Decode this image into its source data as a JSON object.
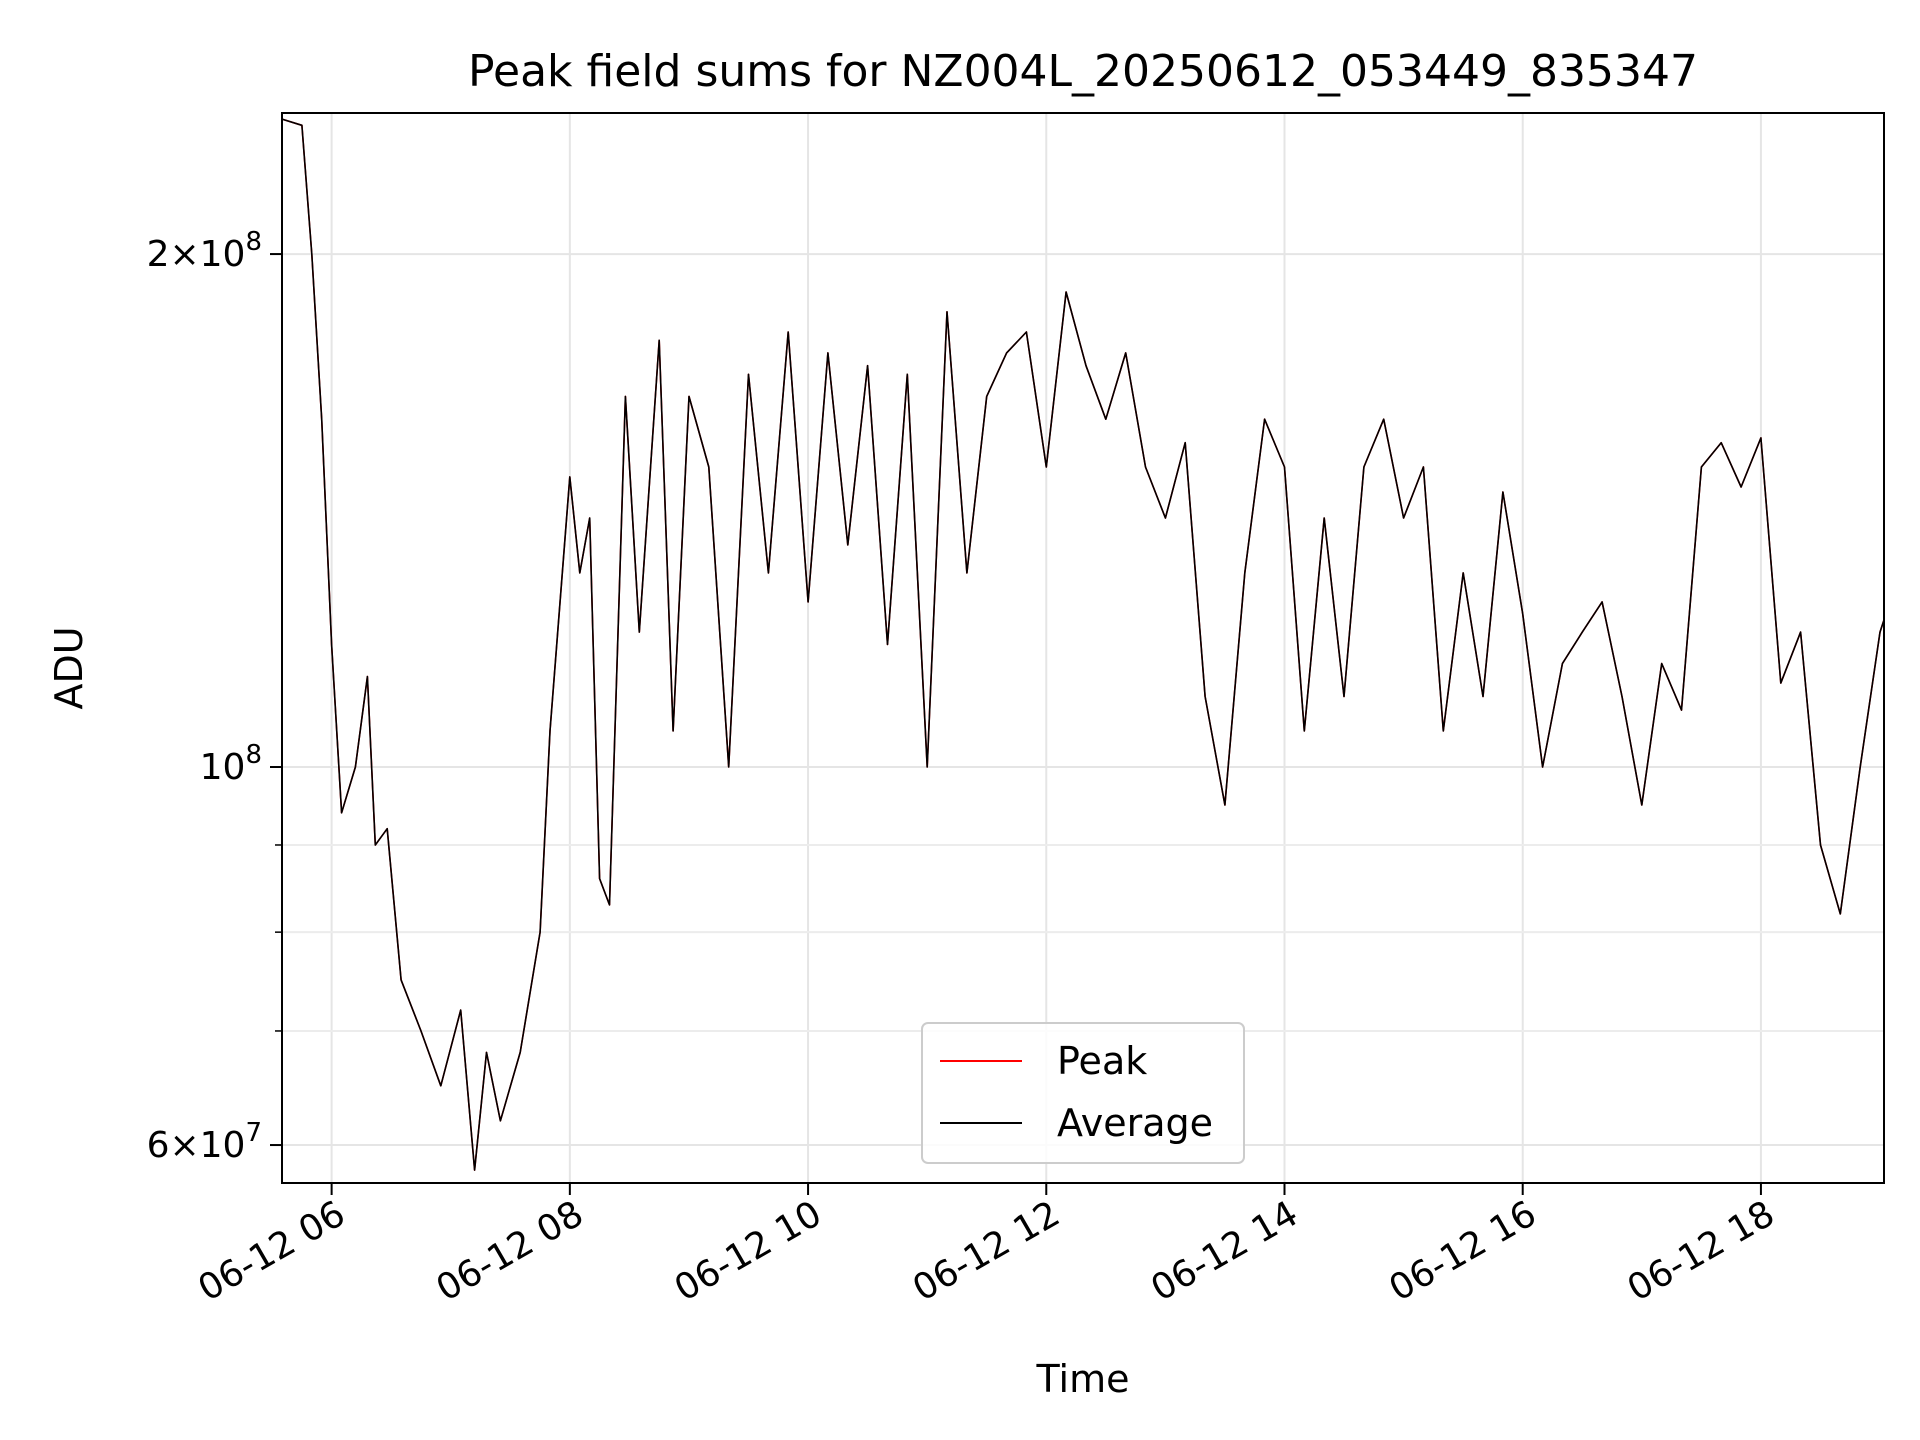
{
  "chart_data": {
    "type": "line",
    "title": "Peak field sums for NZ004L_20250612_053449_835347",
    "xlabel": "Time",
    "ylabel": "ADU",
    "yscale": "log",
    "x_range": [
      "2025-06-12 05:35",
      "2025-06-12 19:02"
    ],
    "ylim": [
      57000000,
      242000000
    ],
    "x_ticks": [
      "06-12 06",
      "06-12 08",
      "06-12 10",
      "06-12 12",
      "06-12 14",
      "06-12 16",
      "06-12 18"
    ],
    "y_ticks_major": [
      {
        "value": 100000000,
        "base": "10",
        "exp": "8",
        "mult": ""
      },
      {
        "value": 200000000,
        "base": "10",
        "exp": "8",
        "mult": "2"
      },
      {
        "value": 60000000,
        "base": "10",
        "exp": "7",
        "mult": "6"
      }
    ],
    "y_ticks_minor": [
      70000000,
      80000000,
      90000000
    ],
    "grid": true,
    "legend_position": "bottom-center",
    "series": [
      {
        "name": "Peak",
        "color": "#ff0000",
        "points": [
          [
            "06-12 05:35",
            240000000
          ],
          [
            "06-12 05:45",
            238000000
          ],
          [
            "06-12 05:50",
            200000000
          ],
          [
            "06-12 05:55",
            160000000
          ],
          [
            "06-12 06:00",
            118000000
          ],
          [
            "06-12 06:05",
            94000000
          ],
          [
            "06-12 06:12",
            100000000
          ],
          [
            "06-12 06:18",
            113000000
          ],
          [
            "06-12 06:22",
            90000000
          ],
          [
            "06-12 06:28",
            92000000
          ],
          [
            "06-12 06:35",
            75000000
          ],
          [
            "06-12 06:45",
            70000000
          ],
          [
            "06-12 06:55",
            65000000
          ],
          [
            "06-12 07:05",
            72000000
          ],
          [
            "06-12 07:12",
            58000000
          ],
          [
            "06-12 07:18",
            68000000
          ],
          [
            "06-12 07:25",
            62000000
          ],
          [
            "06-12 07:35",
            68000000
          ],
          [
            "06-12 07:45",
            80000000
          ],
          [
            "06-12 07:50",
            105000000
          ],
          [
            "06-12 08:00",
            148000000
          ],
          [
            "06-12 08:05",
            130000000
          ],
          [
            "06-12 08:10",
            140000000
          ],
          [
            "06-12 08:15",
            86000000
          ],
          [
            "06-12 08:20",
            83000000
          ],
          [
            "06-12 08:28",
            165000000
          ],
          [
            "06-12 08:35",
            120000000
          ],
          [
            "06-12 08:45",
            178000000
          ],
          [
            "06-12 08:52",
            105000000
          ],
          [
            "06-12 09:00",
            165000000
          ],
          [
            "06-12 09:10",
            150000000
          ],
          [
            "06-12 09:20",
            100000000
          ],
          [
            "06-12 09:30",
            170000000
          ],
          [
            "06-12 09:40",
            130000000
          ],
          [
            "06-12 09:50",
            180000000
          ],
          [
            "06-12 10:00",
            125000000
          ],
          [
            "06-12 10:10",
            175000000
          ],
          [
            "06-12 10:20",
            135000000
          ],
          [
            "06-12 10:30",
            172000000
          ],
          [
            "06-12 10:40",
            118000000
          ],
          [
            "06-12 10:50",
            170000000
          ],
          [
            "06-12 11:00",
            100000000
          ],
          [
            "06-12 11:10",
            185000000
          ],
          [
            "06-12 11:20",
            130000000
          ],
          [
            "06-12 11:30",
            165000000
          ],
          [
            "06-12 11:40",
            175000000
          ],
          [
            "06-12 11:50",
            180000000
          ],
          [
            "06-12 12:00",
            150000000
          ],
          [
            "06-12 12:10",
            190000000
          ],
          [
            "06-12 12:20",
            172000000
          ],
          [
            "06-12 12:30",
            160000000
          ],
          [
            "06-12 12:40",
            175000000
          ],
          [
            "06-12 12:50",
            150000000
          ],
          [
            "06-12 13:00",
            140000000
          ],
          [
            "06-12 13:10",
            155000000
          ],
          [
            "06-12 13:20",
            110000000
          ],
          [
            "06-12 13:30",
            95000000
          ],
          [
            "06-12 13:40",
            130000000
          ],
          [
            "06-12 13:50",
            160000000
          ],
          [
            "06-12 14:00",
            150000000
          ],
          [
            "06-12 14:10",
            105000000
          ],
          [
            "06-12 14:20",
            140000000
          ],
          [
            "06-12 14:30",
            110000000
          ],
          [
            "06-12 14:40",
            150000000
          ],
          [
            "06-12 14:50",
            160000000
          ],
          [
            "06-12 15:00",
            140000000
          ],
          [
            "06-12 15:10",
            150000000
          ],
          [
            "06-12 15:20",
            105000000
          ],
          [
            "06-12 15:30",
            130000000
          ],
          [
            "06-12 15:40",
            110000000
          ],
          [
            "06-12 15:50",
            145000000
          ],
          [
            "06-12 16:00",
            123000000
          ],
          [
            "06-12 16:10",
            100000000
          ],
          [
            "06-12 16:20",
            115000000
          ],
          [
            "06-12 16:30",
            120000000
          ],
          [
            "06-12 16:40",
            125000000
          ],
          [
            "06-12 16:50",
            110000000
          ],
          [
            "06-12 17:00",
            95000000
          ],
          [
            "06-12 17:10",
            115000000
          ],
          [
            "06-12 17:20",
            108000000
          ],
          [
            "06-12 17:30",
            150000000
          ],
          [
            "06-12 17:40",
            155000000
          ],
          [
            "06-12 17:50",
            146000000
          ],
          [
            "06-12 18:00",
            156000000
          ],
          [
            "06-12 18:10",
            112000000
          ],
          [
            "06-12 18:20",
            120000000
          ],
          [
            "06-12 18:30",
            90000000
          ],
          [
            "06-12 18:40",
            82000000
          ],
          [
            "06-12 18:50",
            100000000
          ],
          [
            "06-12 19:00",
            120000000
          ],
          [
            "06-12 19:02",
            122000000
          ]
        ]
      },
      {
        "name": "Average",
        "color": "#000000",
        "points": [
          [
            "06-12 05:35",
            240000000
          ],
          [
            "06-12 05:45",
            238000000
          ],
          [
            "06-12 05:50",
            200000000
          ],
          [
            "06-12 05:55",
            160000000
          ],
          [
            "06-12 06:00",
            118000000
          ],
          [
            "06-12 06:05",
            94000000
          ],
          [
            "06-12 06:12",
            100000000
          ],
          [
            "06-12 06:18",
            113000000
          ],
          [
            "06-12 06:22",
            90000000
          ],
          [
            "06-12 06:28",
            92000000
          ],
          [
            "06-12 06:35",
            75000000
          ],
          [
            "06-12 06:45",
            70000000
          ],
          [
            "06-12 06:55",
            65000000
          ],
          [
            "06-12 07:05",
            72000000
          ],
          [
            "06-12 07:12",
            58000000
          ],
          [
            "06-12 07:18",
            68000000
          ],
          [
            "06-12 07:25",
            62000000
          ],
          [
            "06-12 07:35",
            68000000
          ],
          [
            "06-12 07:45",
            80000000
          ],
          [
            "06-12 07:50",
            105000000
          ],
          [
            "06-12 08:00",
            148000000
          ],
          [
            "06-12 08:05",
            130000000
          ],
          [
            "06-12 08:10",
            140000000
          ],
          [
            "06-12 08:15",
            86000000
          ],
          [
            "06-12 08:20",
            83000000
          ],
          [
            "06-12 08:28",
            165000000
          ],
          [
            "06-12 08:35",
            120000000
          ],
          [
            "06-12 08:45",
            178000000
          ],
          [
            "06-12 08:52",
            105000000
          ],
          [
            "06-12 09:00",
            165000000
          ],
          [
            "06-12 09:10",
            150000000
          ],
          [
            "06-12 09:20",
            100000000
          ],
          [
            "06-12 09:30",
            170000000
          ],
          [
            "06-12 09:40",
            130000000
          ],
          [
            "06-12 09:50",
            180000000
          ],
          [
            "06-12 10:00",
            125000000
          ],
          [
            "06-12 10:10",
            175000000
          ],
          [
            "06-12 10:20",
            135000000
          ],
          [
            "06-12 10:30",
            172000000
          ],
          [
            "06-12 10:40",
            118000000
          ],
          [
            "06-12 10:50",
            170000000
          ],
          [
            "06-12 11:00",
            100000000
          ],
          [
            "06-12 11:10",
            185000000
          ],
          [
            "06-12 11:20",
            130000000
          ],
          [
            "06-12 11:30",
            165000000
          ],
          [
            "06-12 11:40",
            175000000
          ],
          [
            "06-12 11:50",
            180000000
          ],
          [
            "06-12 12:00",
            150000000
          ],
          [
            "06-12 12:10",
            190000000
          ],
          [
            "06-12 12:20",
            172000000
          ],
          [
            "06-12 12:30",
            160000000
          ],
          [
            "06-12 12:40",
            175000000
          ],
          [
            "06-12 12:50",
            150000000
          ],
          [
            "06-12 13:00",
            140000000
          ],
          [
            "06-12 13:10",
            155000000
          ],
          [
            "06-12 13:20",
            110000000
          ],
          [
            "06-12 13:30",
            95000000
          ],
          [
            "06-12 13:40",
            130000000
          ],
          [
            "06-12 13:50",
            160000000
          ],
          [
            "06-12 14:00",
            150000000
          ],
          [
            "06-12 14:10",
            105000000
          ],
          [
            "06-12 14:20",
            140000000
          ],
          [
            "06-12 14:30",
            110000000
          ],
          [
            "06-12 14:40",
            150000000
          ],
          [
            "06-12 14:50",
            160000000
          ],
          [
            "06-12 15:00",
            140000000
          ],
          [
            "06-12 15:10",
            150000000
          ],
          [
            "06-12 15:20",
            105000000
          ],
          [
            "06-12 15:30",
            130000000
          ],
          [
            "06-12 15:40",
            110000000
          ],
          [
            "06-12 15:50",
            145000000
          ],
          [
            "06-12 16:00",
            123000000
          ],
          [
            "06-12 16:10",
            100000000
          ],
          [
            "06-12 16:20",
            115000000
          ],
          [
            "06-12 16:30",
            120000000
          ],
          [
            "06-12 16:40",
            125000000
          ],
          [
            "06-12 16:50",
            110000000
          ],
          [
            "06-12 17:00",
            95000000
          ],
          [
            "06-12 17:10",
            115000000
          ],
          [
            "06-12 17:20",
            108000000
          ],
          [
            "06-12 17:30",
            150000000
          ],
          [
            "06-12 17:40",
            155000000
          ],
          [
            "06-12 17:50",
            146000000
          ],
          [
            "06-12 18:00",
            156000000
          ],
          [
            "06-12 18:10",
            112000000
          ],
          [
            "06-12 18:20",
            120000000
          ],
          [
            "06-12 18:30",
            90000000
          ],
          [
            "06-12 18:40",
            82000000
          ],
          [
            "06-12 18:50",
            100000000
          ],
          [
            "06-12 19:00",
            120000000
          ],
          [
            "06-12 19:02",
            122000000
          ]
        ]
      }
    ]
  }
}
